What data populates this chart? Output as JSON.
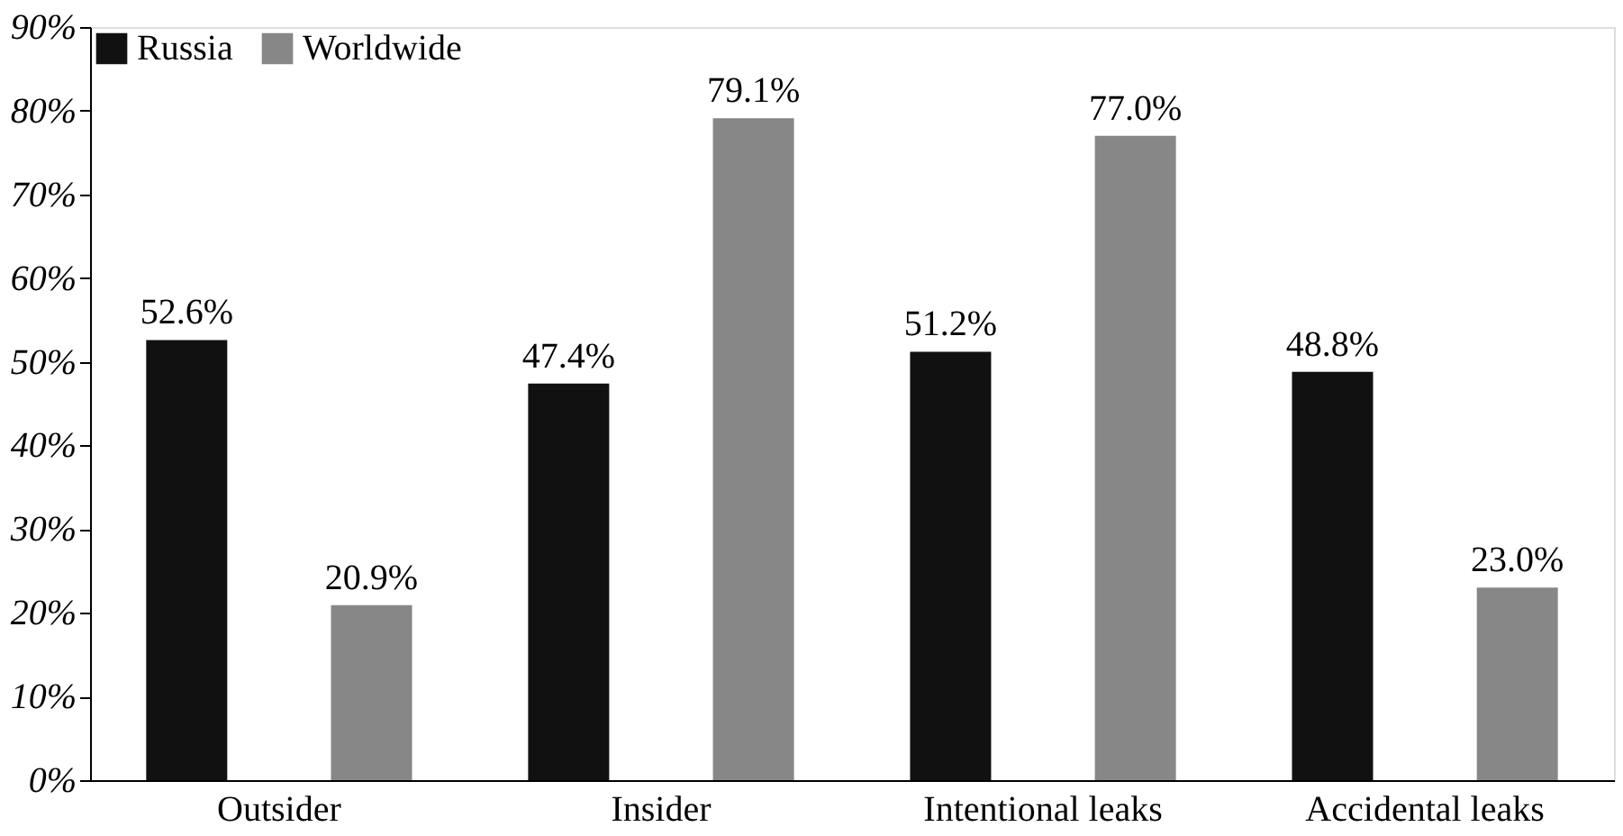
{
  "chart_data": {
    "type": "bar",
    "categories": [
      "Outsider",
      "Insider",
      "Intentional leaks",
      "Accidental leaks"
    ],
    "series": [
      {
        "name": "Russia",
        "color": "#111111",
        "values": [
          52.6,
          47.4,
          51.2,
          48.8
        ],
        "value_labels": [
          "52.6%",
          "47.4%",
          "51.2%",
          "48.8%"
        ]
      },
      {
        "name": "Worldwide",
        "color": "#878787",
        "values": [
          20.9,
          79.1,
          77.0,
          23.0
        ],
        "value_labels": [
          "20.9%",
          "79.1%",
          "77.0%",
          "23.0%"
        ]
      }
    ],
    "ylim": [
      0,
      90
    ],
    "yticks": [
      {
        "value": 0,
        "label": "0%"
      },
      {
        "value": 10,
        "label": "10%"
      },
      {
        "value": 20,
        "label": "20%"
      },
      {
        "value": 30,
        "label": "30%"
      },
      {
        "value": 40,
        "label": "40%"
      },
      {
        "value": 50,
        "label": "50%"
      },
      {
        "value": 60,
        "label": "60%"
      },
      {
        "value": 70,
        "label": "70%"
      },
      {
        "value": 80,
        "label": "80%"
      },
      {
        "value": 90,
        "label": "90%"
      }
    ],
    "grid": false,
    "legend": "top left"
  }
}
